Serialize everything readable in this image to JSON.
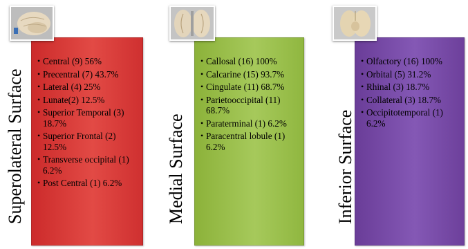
{
  "panels": [
    {
      "label": "Superolateral Surface",
      "color": "#d9403c",
      "items": [
        "Central (9) 56%",
        "Precentral (7) 43.7%",
        "Lateral (4) 25%",
        "Lunate(2) 12.5%",
        "Superior Temporal (3) 18.7%",
        "Superior Frontal (2) 12.5%",
        "Transverse occipital (1) 6.2%",
        "Post Central (1) 6.2%"
      ]
    },
    {
      "label": "Medial Surface",
      "color": "#9dc252",
      "items": [
        "Callosal (16) 100%",
        "Calcarine (15) 93.7%",
        "Cingulate (11) 68.7%",
        "Parietooccipital (11) 68.7%",
        "Paraterminal (1) 6.2%",
        "Paracentral lobule (1) 6.2%"
      ]
    },
    {
      "label": "Inferior Surface",
      "color": "#7b4fae",
      "items": [
        "Olfactory (16) 100%",
        "Orbital (5) 31.2%",
        "Rhinal (3) 18.7%",
        "Collateral (3) 18.7%",
        "Occipitotemporal (1) 6.2%"
      ]
    }
  ]
}
